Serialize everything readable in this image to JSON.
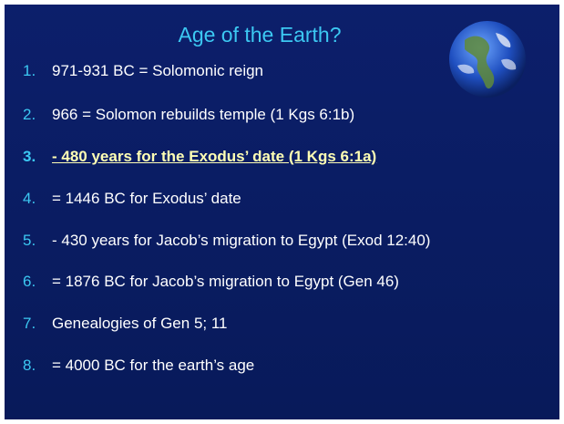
{
  "slide": {
    "title": "Age of the Earth?",
    "items": [
      {
        "number": "1.",
        "text": "971-931 BC = Solomonic reign"
      },
      {
        "number": "2.",
        "text": "966 = Solomon rebuilds temple (1 Kgs 6:1b)"
      },
      {
        "number": "3.",
        "text": "- 480 years for the Exodus’ date (1 Kgs 6:1a)"
      },
      {
        "number": "4.",
        "text": "= 1446 BC for Exodus’ date"
      },
      {
        "number": "5.",
        "text": "- 430 years for Jacob’s migration to Egypt (Exod 12:40)"
      },
      {
        "number": "6.",
        "text": "= 1876 BC for Jacob’s migration to Egypt (Gen 46)"
      },
      {
        "number": "7.",
        "text": "Genealogies of Gen 5; 11"
      },
      {
        "number": "8.",
        "text": "= 4000 BC for the earth’s age"
      }
    ]
  }
}
